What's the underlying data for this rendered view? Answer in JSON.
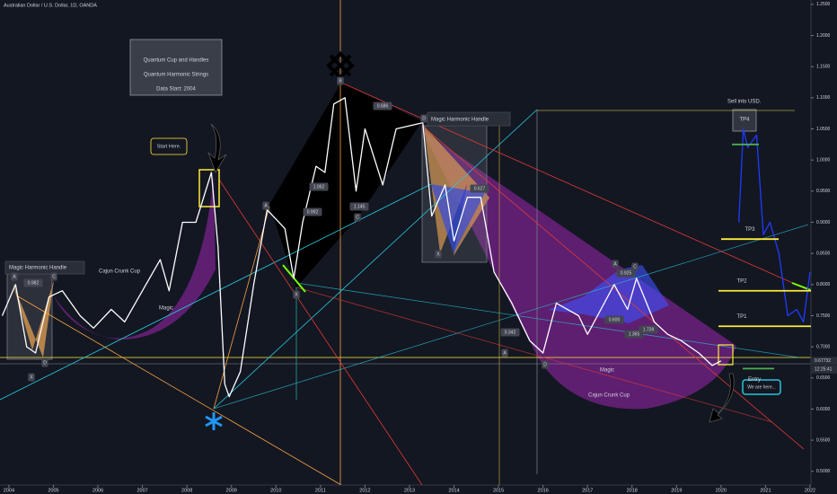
{
  "chart_data": {
    "type": "line",
    "title": "Australian Dollar / U.S. Dollar, 1D, OANDA",
    "xlim": [
      2003.8,
      2022.02
    ],
    "xticks": [
      2004,
      2005,
      2006,
      2007,
      2008,
      2009,
      2010,
      2011,
      2012,
      2013,
      2014,
      2015,
      2016,
      2017,
      2018,
      2019,
      2020,
      2021,
      2022
    ],
    "ylim": [
      0.478,
      1.257
    ],
    "yticks": [
      {
        "value": 1.25,
        "label": "1.2500"
      },
      {
        "value": 1.2,
        "label": "1.2000"
      },
      {
        "value": 1.15,
        "label": "1.1500"
      },
      {
        "value": 1.1,
        "label": "1.1000"
      },
      {
        "value": 1.05,
        "label": "1.0500"
      },
      {
        "value": 1,
        "label": "1.0000"
      },
      {
        "value": 0.95,
        "label": "0.9500"
      },
      {
        "value": 0.9,
        "label": "0.9000"
      },
      {
        "value": 0.85,
        "label": "0.8500"
      },
      {
        "value": 0.8,
        "label": "0.8000"
      },
      {
        "value": 0.75,
        "label": "0.7500"
      },
      {
        "value": 0.7,
        "label": "0.7000"
      },
      {
        "value": 0.65,
        "label": "0.6500"
      },
      {
        "value": 0.6,
        "label": "0.6000"
      },
      {
        "value": 0.55,
        "label": "0.5500"
      },
      {
        "value": 0.5,
        "label": "0.5000"
      }
    ],
    "grid": false,
    "series": [
      {
        "color": "#ffffff",
        "x": [
          2003.85,
          2004.15,
          2004.4,
          2004.6,
          2004.9,
          2005.2,
          2005.6,
          2005.9,
          2006.3,
          2006.6,
          2007.0,
          2007.4,
          2007.6,
          2007.9,
          2008.2,
          2008.55,
          2008.7,
          2008.85,
          2008.95,
          2009.2,
          2009.5,
          2009.8,
          2010.2,
          2010.4,
          2010.6,
          2010.9,
          2011.1,
          2011.3,
          2011.55,
          2011.8,
          2012.0,
          2012.4,
          2012.7,
          2013.3,
          2013.5,
          2013.8,
          2014.0,
          2014.3,
          2014.6,
          2014.9,
          2015.3,
          2015.7,
          2016.0,
          2016.3,
          2016.8,
          2017.0,
          2017.3,
          2017.6,
          2017.9,
          2018.1,
          2018.5,
          2018.8,
          2019.1,
          2019.5,
          2019.8,
          2020.0
        ],
        "values": [
          0.75,
          0.8,
          0.7,
          0.69,
          0.78,
          0.79,
          0.75,
          0.73,
          0.76,
          0.74,
          0.79,
          0.84,
          0.79,
          0.9,
          0.9,
          0.98,
          0.86,
          0.64,
          0.62,
          0.66,
          0.8,
          0.92,
          0.89,
          0.81,
          0.9,
          0.99,
          0.98,
          1.09,
          1.1,
          0.95,
          1.05,
          0.96,
          1.05,
          1.06,
          0.91,
          0.96,
          0.87,
          0.94,
          0.94,
          0.82,
          0.77,
          0.71,
          0.69,
          0.77,
          0.75,
          0.72,
          0.76,
          0.8,
          0.76,
          0.81,
          0.74,
          0.72,
          0.71,
          0.69,
          0.67,
          0.6773
        ]
      },
      {
        "color": "#1e3cff",
        "x": [
          2020.4,
          2020.5,
          2020.6,
          2020.8,
          2020.95,
          2021.1,
          2021.3,
          2021.5,
          2021.7,
          2021.85,
          2022.0
        ],
        "values": [
          0.9,
          1.05,
          1.02,
          1.04,
          0.88,
          0.9,
          0.85,
          0.75,
          0.76,
          0.74,
          0.82
        ]
      }
    ],
    "levels": [
      {
        "label": "TP4",
        "value": 1.025,
        "color": "#4caf50"
      },
      {
        "label": "TP3",
        "value": 0.873,
        "color": "#ffeb3b"
      },
      {
        "label": "TP2",
        "value": 0.79,
        "color": "#ffeb3b"
      },
      {
        "label": "TP1",
        "value": 0.733,
        "color": "#ffeb3b"
      },
      {
        "label": "Entry",
        "value": 0.665,
        "color": "#4caf50"
      }
    ],
    "last_price": {
      "value": 0.67732,
      "label": "0.67732"
    },
    "countdown": "12:25:41",
    "annotations": [
      "Quantum Cup and Handles",
      "Quantum Harmonic Strings",
      "Data Start:  2004",
      "Start Here.",
      "Magic Harmonic Handle",
      "Cajun Crunk Cup",
      "Magic",
      "Magic Harmonic Handle",
      "Magic",
      "Cajun Crunk Cup",
      "Sell into USD.",
      "We are here..."
    ],
    "pattern_labels": [
      "A",
      "0.982",
      "C",
      "X",
      "D",
      "B",
      "0.686",
      "D",
      "A",
      "1.062",
      "0.992",
      "1.145",
      "C",
      "X",
      "X",
      "0.627",
      "A",
      "C",
      "0.925",
      "0.600",
      "1.365",
      "1.739",
      "0.342",
      "A",
      "D"
    ]
  }
}
